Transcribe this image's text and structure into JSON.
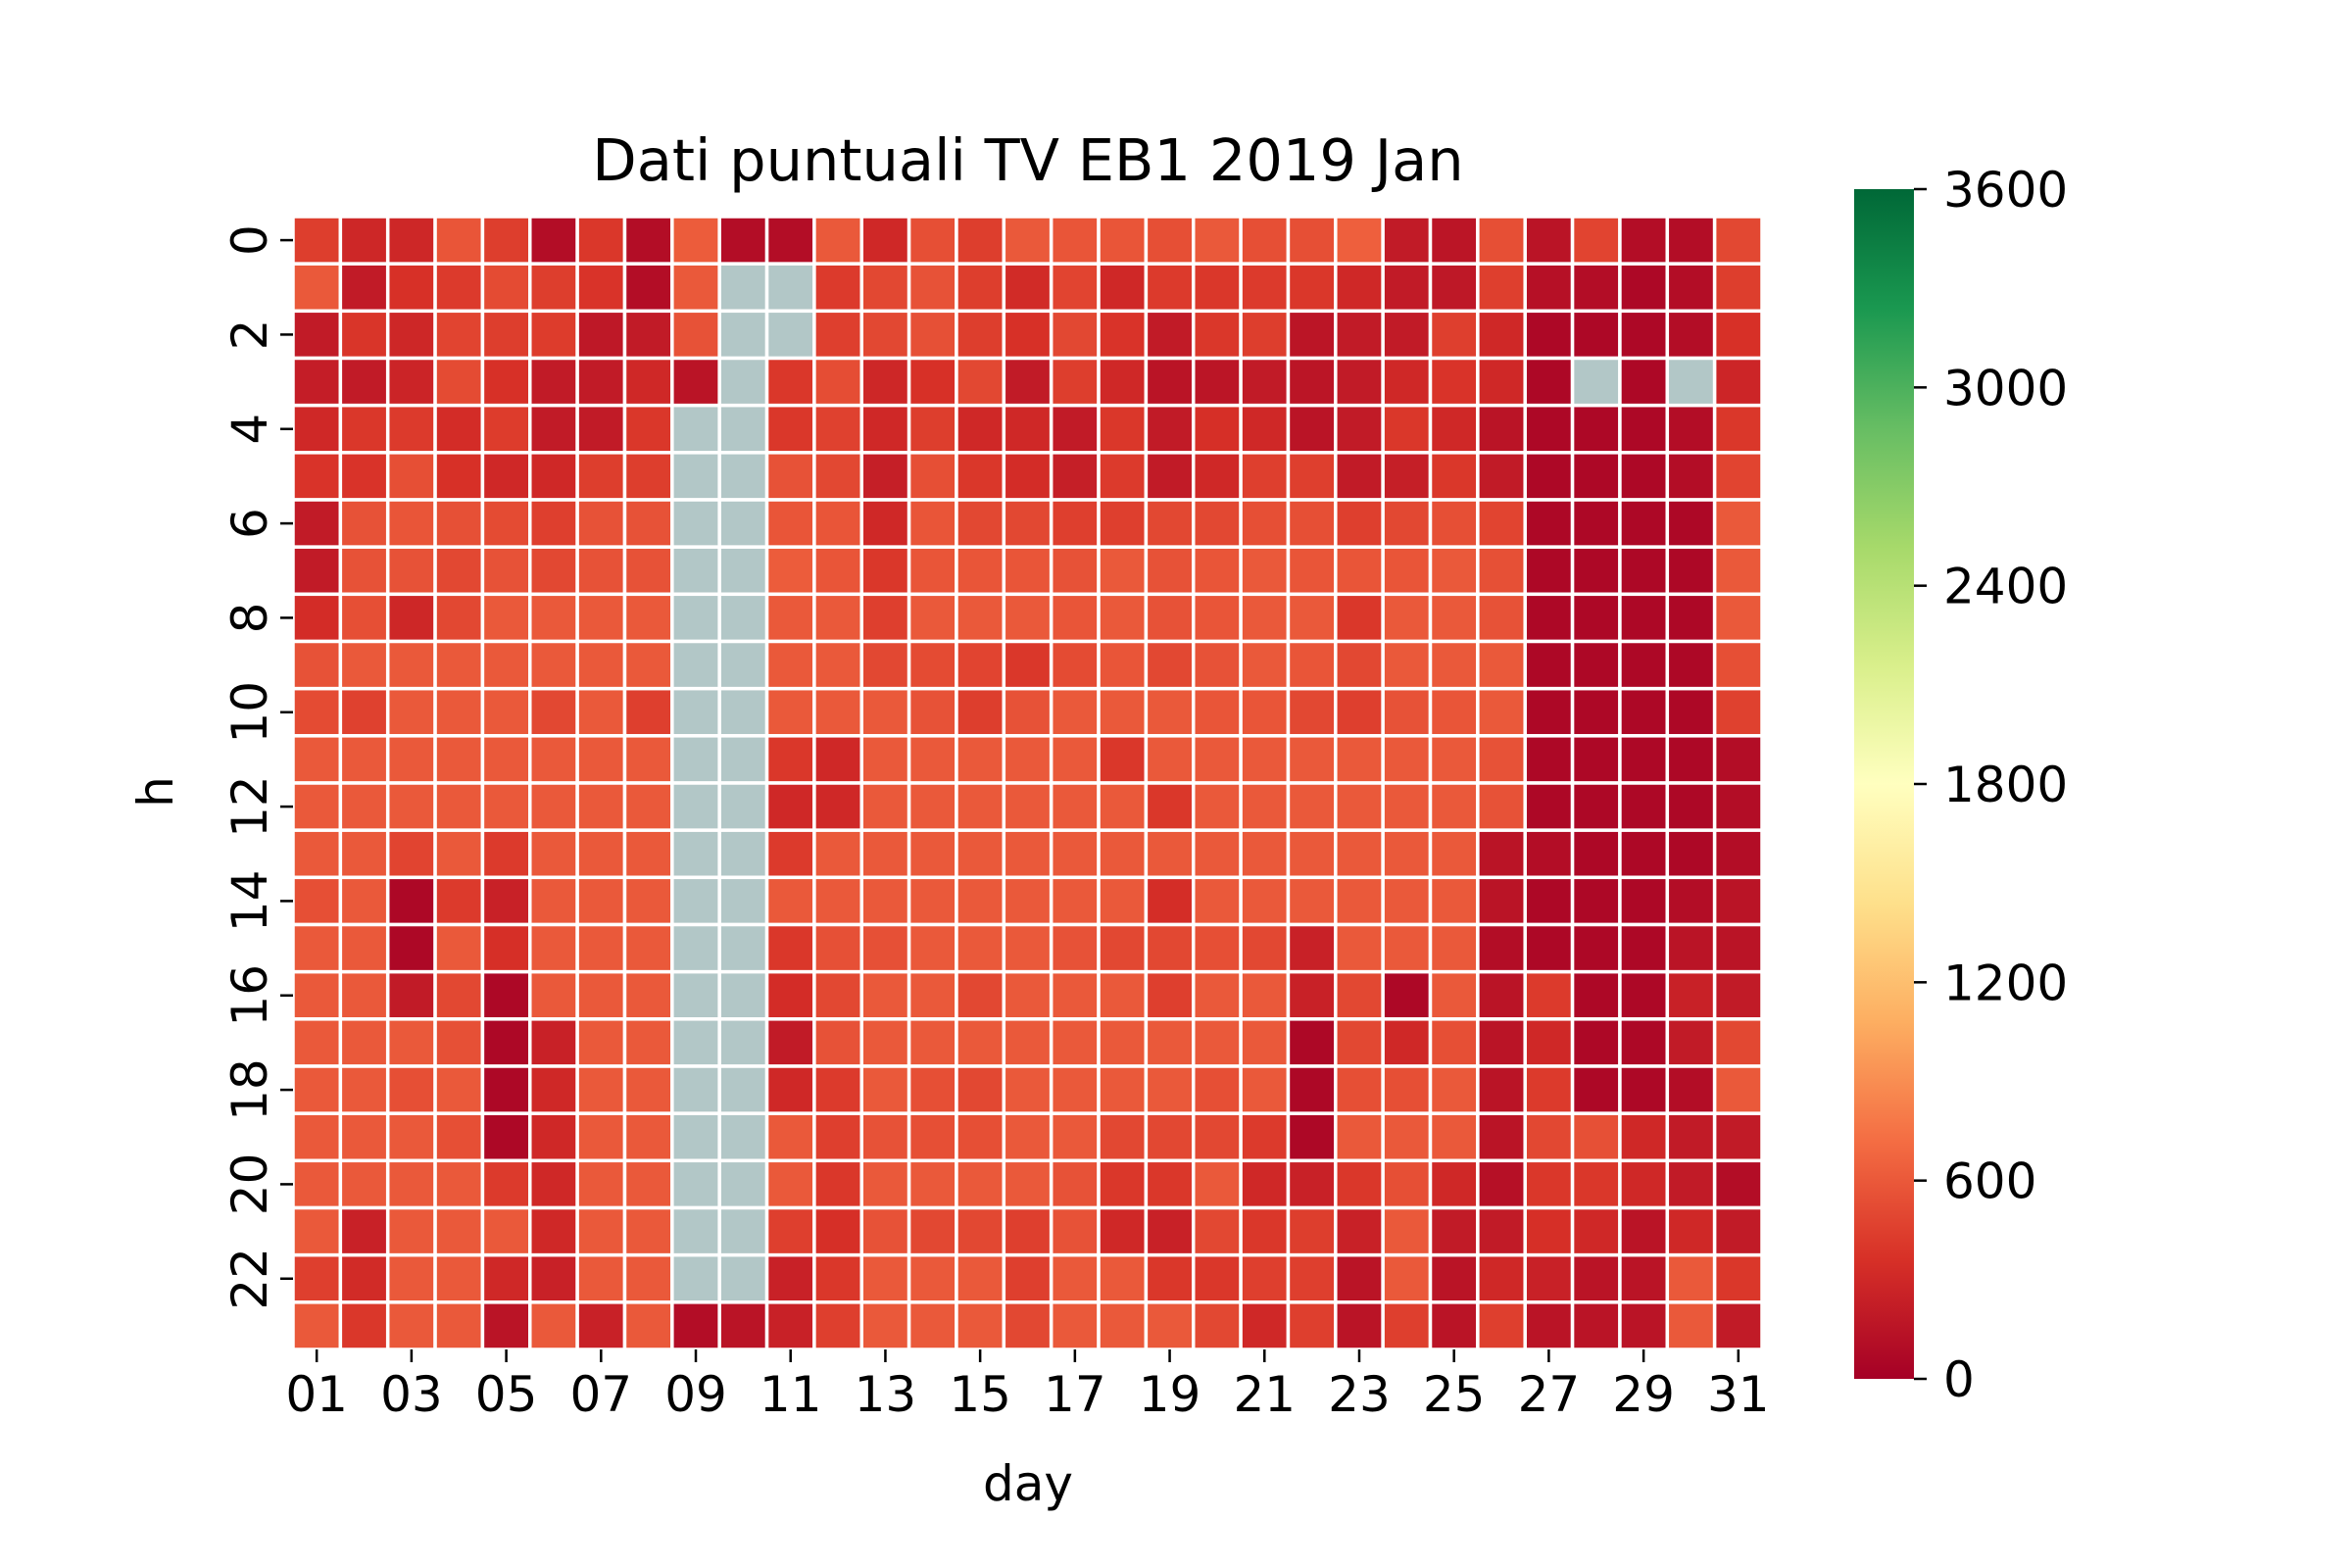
{
  "chart_data": {
    "type": "heatmap",
    "title": "Dati puntuali TV EB1 2019 Jan",
    "xlabel": "day",
    "ylabel": "h",
    "x_tick_labels": [
      "01",
      "03",
      "05",
      "07",
      "09",
      "11",
      "13",
      "15",
      "17",
      "19",
      "21",
      "23",
      "25",
      "27",
      "29",
      "31"
    ],
    "y_tick_labels": [
      "0",
      "2",
      "4",
      "6",
      "8",
      "10",
      "12",
      "14",
      "16",
      "18",
      "20",
      "22"
    ],
    "days": [
      "01",
      "02",
      "03",
      "04",
      "05",
      "06",
      "07",
      "08",
      "09",
      "10",
      "11",
      "12",
      "13",
      "14",
      "15",
      "16",
      "17",
      "18",
      "19",
      "20",
      "21",
      "22",
      "23",
      "24",
      "25",
      "26",
      "27",
      "28",
      "29",
      "30",
      "31"
    ],
    "hours": [
      0,
      1,
      2,
      3,
      4,
      5,
      6,
      7,
      8,
      9,
      10,
      11,
      12,
      13,
      14,
      15,
      16,
      17,
      18,
      19,
      20,
      21,
      22,
      23
    ],
    "colorbar": {
      "colormap": "RdYlGn",
      "min": 0,
      "max": 3600,
      "ticks": [
        "0",
        "600",
        "1200",
        "1800",
        "2400",
        "3000",
        "3600"
      ],
      "stops": [
        "#a50026",
        "#d73027",
        "#f46d43",
        "#fdae61",
        "#fee08b",
        "#ffffbf",
        "#d9ef8b",
        "#a6d96a",
        "#66bd63",
        "#1a9850",
        "#006837"
      ]
    },
    "missing_color": "#b2c7c7",
    "values": [
      [
        440,
        290,
        290,
        580,
        440,
        100,
        400,
        100,
        620,
        100,
        100,
        600,
        300,
        540,
        440,
        600,
        580,
        580,
        540,
        600,
        540,
        540,
        640,
        200,
        160,
        540,
        150,
        480,
        100,
        100,
        500
      ],
      [
        600,
        200,
        360,
        420,
        520,
        440,
        380,
        100,
        600,
        null,
        null,
        420,
        500,
        560,
        440,
        320,
        480,
        300,
        420,
        400,
        420,
        400,
        300,
        200,
        180,
        450,
        120,
        100,
        60,
        100,
        440
      ],
      [
        200,
        390,
        290,
        480,
        440,
        430,
        180,
        200,
        560,
        null,
        null,
        450,
        500,
        550,
        440,
        360,
        500,
        380,
        200,
        400,
        440,
        160,
        200,
        200,
        450,
        300,
        60,
        60,
        60,
        100,
        360
      ],
      [
        220,
        200,
        270,
        520,
        360,
        200,
        200,
        300,
        150,
        null,
        400,
        530,
        290,
        360,
        500,
        200,
        440,
        300,
        150,
        160,
        200,
        160,
        200,
        300,
        380,
        300,
        60,
        null,
        60,
        null,
        280
      ],
      [
        300,
        400,
        420,
        330,
        430,
        200,
        200,
        400,
        null,
        null,
        400,
        460,
        300,
        440,
        300,
        300,
        200,
        400,
        200,
        350,
        300,
        150,
        200,
        400,
        300,
        150,
        60,
        60,
        60,
        100,
        400
      ],
      [
        380,
        380,
        540,
        360,
        300,
        300,
        440,
        440,
        null,
        null,
        560,
        500,
        230,
        540,
        400,
        330,
        230,
        420,
        200,
        300,
        450,
        450,
        200,
        230,
        400,
        200,
        60,
        60,
        60,
        100,
        480
      ],
      [
        200,
        560,
        580,
        550,
        520,
        450,
        560,
        560,
        null,
        null,
        580,
        580,
        300,
        580,
        500,
        500,
        450,
        450,
        500,
        500,
        540,
        540,
        450,
        500,
        540,
        480,
        60,
        60,
        60,
        60,
        600
      ],
      [
        200,
        560,
        560,
        500,
        560,
        500,
        560,
        560,
        null,
        null,
        620,
        580,
        400,
        580,
        580,
        580,
        560,
        600,
        560,
        580,
        600,
        580,
        580,
        580,
        600,
        550,
        60,
        60,
        60,
        60,
        600
      ],
      [
        330,
        540,
        290,
        500,
        600,
        600,
        600,
        600,
        null,
        null,
        600,
        600,
        450,
        600,
        600,
        600,
        580,
        600,
        560,
        580,
        600,
        600,
        400,
        600,
        600,
        560,
        60,
        60,
        60,
        60,
        600
      ],
      [
        560,
        600,
        600,
        600,
        600,
        600,
        600,
        600,
        null,
        null,
        600,
        600,
        500,
        520,
        480,
        400,
        520,
        580,
        500,
        560,
        600,
        580,
        500,
        600,
        600,
        600,
        60,
        60,
        60,
        60,
        540
      ],
      [
        520,
        460,
        600,
        600,
        600,
        500,
        600,
        450,
        null,
        null,
        600,
        600,
        600,
        560,
        440,
        560,
        600,
        600,
        600,
        580,
        580,
        500,
        450,
        560,
        580,
        600,
        60,
        60,
        60,
        60,
        460
      ],
      [
        600,
        600,
        600,
        600,
        600,
        600,
        600,
        600,
        null,
        null,
        400,
        300,
        600,
        600,
        600,
        600,
        600,
        400,
        600,
        600,
        600,
        600,
        600,
        600,
        600,
        560,
        60,
        60,
        60,
        60,
        100
      ],
      [
        600,
        600,
        600,
        600,
        600,
        600,
        600,
        600,
        null,
        null,
        300,
        300,
        600,
        600,
        600,
        600,
        600,
        600,
        400,
        600,
        600,
        600,
        600,
        600,
        600,
        560,
        60,
        60,
        60,
        60,
        100
      ],
      [
        600,
        600,
        480,
        600,
        420,
        600,
        600,
        600,
        null,
        null,
        420,
        600,
        600,
        600,
        600,
        600,
        600,
        600,
        600,
        600,
        600,
        600,
        600,
        600,
        600,
        150,
        100,
        60,
        60,
        60,
        100
      ],
      [
        540,
        600,
        60,
        420,
        250,
        600,
        600,
        600,
        null,
        null,
        600,
        600,
        600,
        600,
        600,
        600,
        600,
        600,
        340,
        600,
        600,
        600,
        600,
        600,
        600,
        150,
        60,
        60,
        60,
        100,
        150
      ],
      [
        600,
        600,
        60,
        600,
        350,
        600,
        600,
        600,
        null,
        null,
        400,
        550,
        550,
        600,
        600,
        600,
        560,
        500,
        500,
        540,
        500,
        250,
        600,
        600,
        600,
        100,
        60,
        60,
        60,
        150,
        150
      ],
      [
        600,
        600,
        200,
        500,
        60,
        600,
        600,
        600,
        null,
        null,
        330,
        500,
        600,
        600,
        500,
        600,
        600,
        600,
        450,
        600,
        600,
        250,
        500,
        60,
        600,
        150,
        420,
        60,
        60,
        250,
        200
      ],
      [
        600,
        600,
        600,
        550,
        60,
        250,
        600,
        600,
        null,
        null,
        200,
        560,
        600,
        600,
        600,
        600,
        600,
        600,
        600,
        600,
        600,
        60,
        500,
        300,
        540,
        150,
        300,
        60,
        60,
        200,
        500
      ],
      [
        600,
        600,
        540,
        600,
        60,
        300,
        600,
        600,
        null,
        null,
        300,
        420,
        600,
        540,
        500,
        600,
        600,
        600,
        600,
        540,
        600,
        60,
        540,
        540,
        600,
        150,
        420,
        60,
        60,
        100,
        600
      ],
      [
        600,
        600,
        600,
        540,
        60,
        300,
        600,
        600,
        null,
        null,
        600,
        450,
        560,
        540,
        540,
        600,
        600,
        500,
        500,
        500,
        420,
        60,
        600,
        600,
        600,
        150,
        500,
        550,
        300,
        200,
        200
      ],
      [
        600,
        600,
        600,
        600,
        420,
        300,
        600,
        600,
        null,
        null,
        600,
        400,
        600,
        600,
        600,
        600,
        560,
        400,
        400,
        600,
        300,
        250,
        400,
        540,
        300,
        120,
        400,
        400,
        300,
        200,
        100
      ],
      [
        600,
        250,
        600,
        600,
        600,
        300,
        600,
        600,
        null,
        null,
        450,
        350,
        560,
        500,
        500,
        450,
        560,
        300,
        250,
        500,
        400,
        440,
        250,
        600,
        200,
        200,
        350,
        300,
        150,
        300,
        200
      ],
      [
        450,
        320,
        600,
        600,
        300,
        250,
        600,
        600,
        null,
        null,
        250,
        400,
        600,
        600,
        600,
        450,
        600,
        600,
        400,
        400,
        450,
        450,
        150,
        600,
        150,
        300,
        250,
        150,
        150,
        600,
        400
      ],
      [
        600,
        400,
        600,
        600,
        150,
        600,
        250,
        600,
        100,
        150,
        250,
        450,
        600,
        600,
        600,
        500,
        600,
        600,
        600,
        500,
        300,
        450,
        150,
        450,
        150,
        450,
        150,
        150,
        150,
        600,
        200
      ]
    ]
  }
}
